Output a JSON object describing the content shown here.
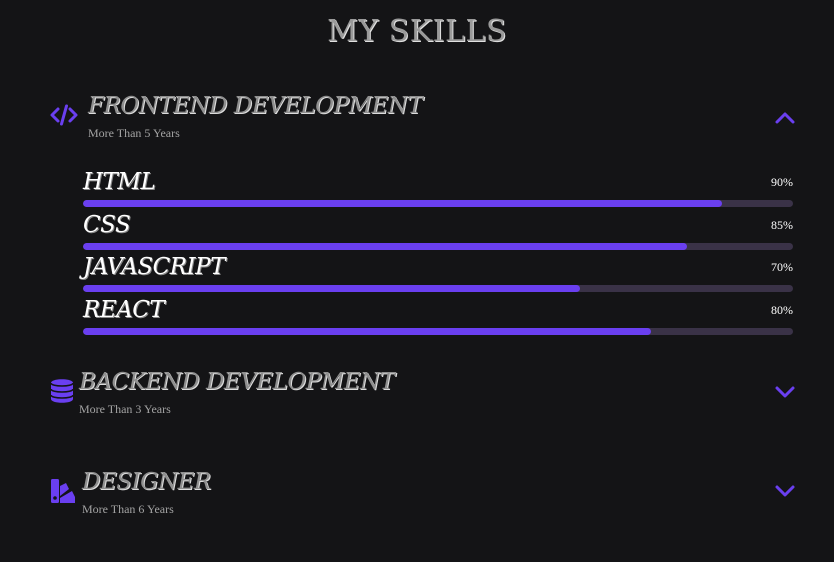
{
  "page": {
    "title": "MY SKILLS"
  },
  "colors": {
    "accent": "#6a3ff0",
    "track": "#3a3247",
    "background": "#141416"
  },
  "sections": [
    {
      "title": "FRONTEND DEVELOPMENT",
      "subtitle": "More Than 5 Years",
      "icon": "code-icon",
      "expanded": true,
      "skills": [
        {
          "name": "HTML",
          "percent_label": "90%",
          "value": 0.9
        },
        {
          "name": "CSS",
          "percent_label": "85%",
          "value": 0.85
        },
        {
          "name": "JAVASCRIPT",
          "percent_label": "70%",
          "value": 0.7
        },
        {
          "name": "REACT",
          "percent_label": "80%",
          "value": 0.8
        }
      ]
    },
    {
      "title": "BACKEND DEVELOPMENT",
      "subtitle": "More Than 3 Years",
      "icon": "database-icon",
      "expanded": false
    },
    {
      "title": "DESIGNER",
      "subtitle": "More Than 6 Years",
      "icon": "swatches-icon",
      "expanded": false
    }
  ]
}
